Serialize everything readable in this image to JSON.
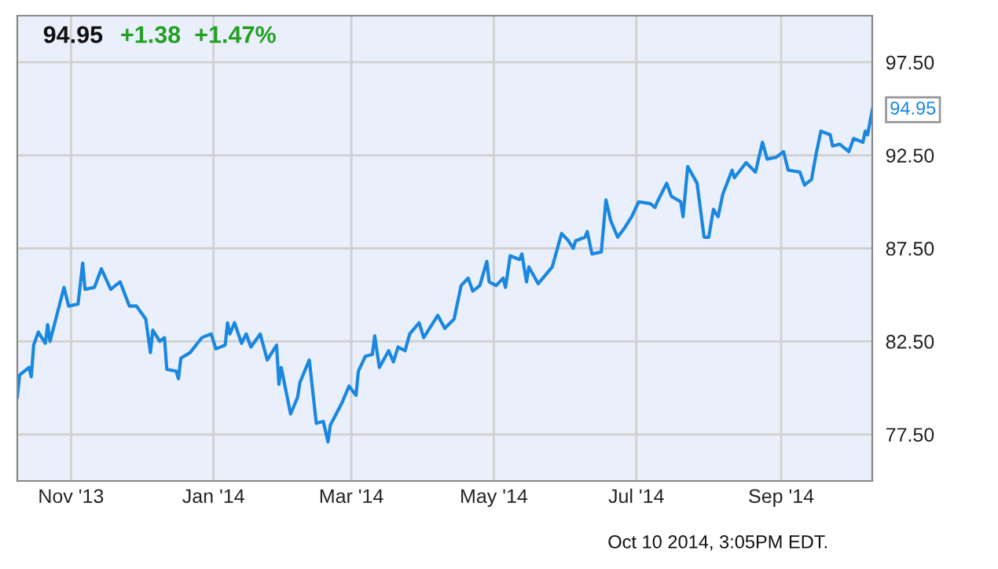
{
  "chart_data": {
    "type": "line",
    "title": "94.95",
    "subtitle": "+1.38  +1.47%",
    "x": [
      "2013-10-09",
      "2013-10-10",
      "2013-10-14",
      "2013-10-15",
      "2013-10-16",
      "2013-10-18",
      "2013-10-21",
      "2013-10-22",
      "2013-10-23",
      "2013-10-29",
      "2013-10-31",
      "2013-11-04",
      "2013-11-06",
      "2013-11-07",
      "2013-11-11",
      "2013-11-14",
      "2013-11-18",
      "2013-11-22",
      "2013-11-26",
      "2013-11-29",
      "2013-12-03",
      "2013-12-05",
      "2013-12-06",
      "2013-12-09",
      "2013-12-11",
      "2013-12-12",
      "2013-12-16",
      "2013-12-17",
      "2013-12-18",
      "2013-12-22",
      "2013-12-27",
      "2013-12-31",
      "2014-01-02",
      "2014-01-06",
      "2014-01-07",
      "2014-01-08",
      "2014-01-10",
      "2014-01-13",
      "2014-01-15",
      "2014-01-17",
      "2014-01-21",
      "2014-01-24",
      "2014-01-28",
      "2014-01-29",
      "2014-01-30",
      "2014-02-03",
      "2014-02-06",
      "2014-02-07",
      "2014-02-11",
      "2014-02-14",
      "2014-02-17",
      "2014-02-19",
      "2014-02-20",
      "2014-02-25",
      "2014-02-28",
      "2014-03-03",
      "2014-03-04",
      "2014-03-07",
      "2014-03-10",
      "2014-03-11",
      "2014-03-13",
      "2014-03-17",
      "2014-03-19",
      "2014-03-21",
      "2014-03-24",
      "2014-03-26",
      "2014-03-30",
      "2014-04-01",
      "2014-04-07",
      "2014-04-10",
      "2014-04-14",
      "2014-04-17",
      "2014-04-20",
      "2014-04-22",
      "2014-04-25",
      "2014-04-28",
      "2014-04-29",
      "2014-05-02",
      "2014-05-05",
      "2014-05-06",
      "2014-05-08",
      "2014-05-12",
      "2014-05-13",
      "2014-05-15",
      "2014-05-16",
      "2014-05-20",
      "2014-05-22",
      "2014-05-26",
      "2014-05-30",
      "2014-06-02",
      "2014-06-04",
      "2014-06-05",
      "2014-06-09",
      "2014-06-10",
      "2014-06-12",
      "2014-06-16",
      "2014-06-18",
      "2014-06-20",
      "2014-06-23",
      "2014-06-26",
      "2014-06-29",
      "2014-07-02",
      "2014-07-07",
      "2014-07-09",
      "2014-07-10",
      "2014-07-14",
      "2014-07-16",
      "2014-07-20",
      "2014-07-21",
      "2014-07-23",
      "2014-07-27",
      "2014-07-30",
      "2014-08-01",
      "2014-08-03",
      "2014-08-05",
      "2014-08-07",
      "2014-08-11",
      "2014-08-12",
      "2014-08-17",
      "2014-08-21",
      "2014-08-24",
      "2014-08-26",
      "2014-08-30",
      "2014-09-02",
      "2014-09-04",
      "2014-09-09",
      "2014-09-11",
      "2014-09-14",
      "2014-09-16",
      "2014-09-18",
      "2014-09-22",
      "2014-09-23",
      "2014-09-26",
      "2014-09-30",
      "2014-10-02",
      "2014-10-06",
      "2014-10-07",
      "2014-10-08",
      "2014-10-10"
    ],
    "series": [
      {
        "color": "#1a87e0",
        "values": [
          79.5,
          80.7,
          81.1,
          80.6,
          82.3,
          83.0,
          82.4,
          83.4,
          82.5,
          85.4,
          84.4,
          84.5,
          86.7,
          85.3,
          85.4,
          86.4,
          85.3,
          85.7,
          84.4,
          84.4,
          83.7,
          81.9,
          83.1,
          82.5,
          82.7,
          81.0,
          80.9,
          80.5,
          81.6,
          81.9,
          82.7,
          82.9,
          82.1,
          82.3,
          83.5,
          82.9,
          83.5,
          82.4,
          82.9,
          82.2,
          82.9,
          81.5,
          82.3,
          80.2,
          81.1,
          78.6,
          79.5,
          80.3,
          81.5,
          78.1,
          78.2,
          77.1,
          78.0,
          79.2,
          80.1,
          79.6,
          80.9,
          81.7,
          81.8,
          82.8,
          81.1,
          82.0,
          81.4,
          82.2,
          82.0,
          82.9,
          83.5,
          82.7,
          83.9,
          83.2,
          83.7,
          85.5,
          85.9,
          85.2,
          85.5,
          86.8,
          85.7,
          85.5,
          85.9,
          85.4,
          87.1,
          86.9,
          87.2,
          85.7,
          86.5,
          85.6,
          85.9,
          86.5,
          88.3,
          87.9,
          87.5,
          87.9,
          88.1,
          88.4,
          87.2,
          87.3,
          90.1,
          89.0,
          88.1,
          88.6,
          89.2,
          90.0,
          89.9,
          89.7,
          90.0,
          91.0,
          90.3,
          90.0,
          89.2,
          91.9,
          91.0,
          88.1,
          88.1,
          89.6,
          89.2,
          90.4,
          91.7,
          91.3,
          92.1,
          91.6,
          93.2,
          92.3,
          92.4,
          92.7,
          91.7,
          91.6,
          90.9,
          91.2,
          92.6,
          93.8,
          93.6,
          93.0,
          93.1,
          92.7,
          93.4,
          93.2,
          93.8,
          93.6,
          94.95
        ]
      }
    ],
    "xlim": [
      "2013-10-09",
      "2014-10-10"
    ],
    "xticks": [
      {
        "value": "2013-11-01",
        "label": "Nov '13"
      },
      {
        "value": "2014-01-01",
        "label": "Jan '14"
      },
      {
        "value": "2014-03-01",
        "label": "Mar '14"
      },
      {
        "value": "2014-05-01",
        "label": "May '14"
      },
      {
        "value": "2014-07-01",
        "label": "Jul '14"
      },
      {
        "value": "2014-09-01",
        "label": "Sep '14"
      }
    ],
    "ylim": [
      75,
      100
    ],
    "yticks": [
      {
        "value": 77.5,
        "label": "77.50"
      },
      {
        "value": 82.5,
        "label": "82.50"
      },
      {
        "value": 87.5,
        "label": "87.50"
      },
      {
        "value": 92.5,
        "label": "92.50"
      },
      {
        "value": 97.5,
        "label": "97.50"
      }
    ],
    "grid": true,
    "marker": "none",
    "line_style": "solid",
    "annotations": [
      {
        "text": "94.95",
        "x": "2014-10-10",
        "y": 94.95
      },
      "Oct 10 2014, 3:05PM EDT."
    ]
  }
}
